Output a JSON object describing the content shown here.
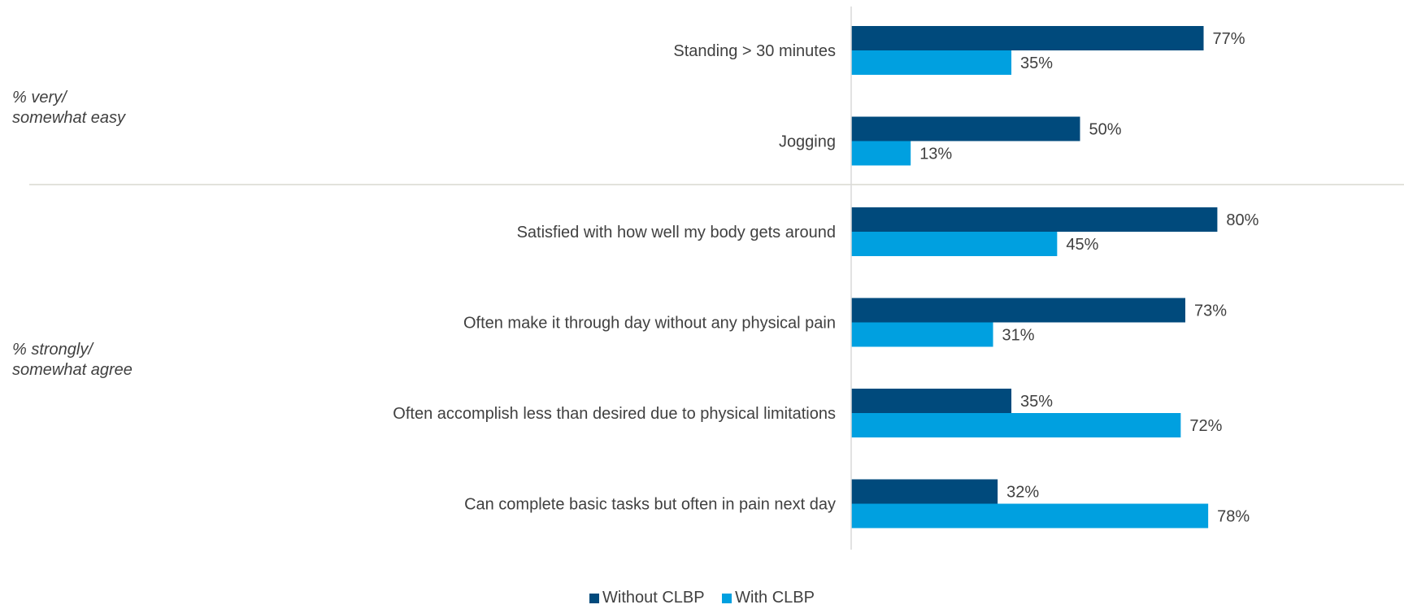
{
  "chart_data": {
    "type": "bar",
    "orientation": "horizontal",
    "categories": [
      "Standing > 30 minutes",
      "Jogging",
      "Satisfied with how well my body gets around",
      "Often make it through day without any physical pain",
      "Often accomplish less than desired due to physical limitations",
      "Can complete basic tasks but often in pain next day"
    ],
    "series": [
      {
        "name": "Without CLBP",
        "values": [
          77,
          50,
          80,
          73,
          35,
          32
        ],
        "color": "#004a7c"
      },
      {
        "name": "With CLBP",
        "values": [
          35,
          13,
          45,
          31,
          72,
          78
        ],
        "color": "#00a0e0"
      }
    ],
    "value_suffix": "%",
    "xlim": [
      0,
      100
    ],
    "groups": [
      {
        "label": "% very/\nsomewhat easy",
        "categories": [
          0,
          1
        ]
      },
      {
        "label": "% strongly/\nsomewhat agree",
        "categories": [
          2,
          3,
          4,
          5
        ]
      }
    ],
    "legend_position": "bottom",
    "grid": false
  }
}
